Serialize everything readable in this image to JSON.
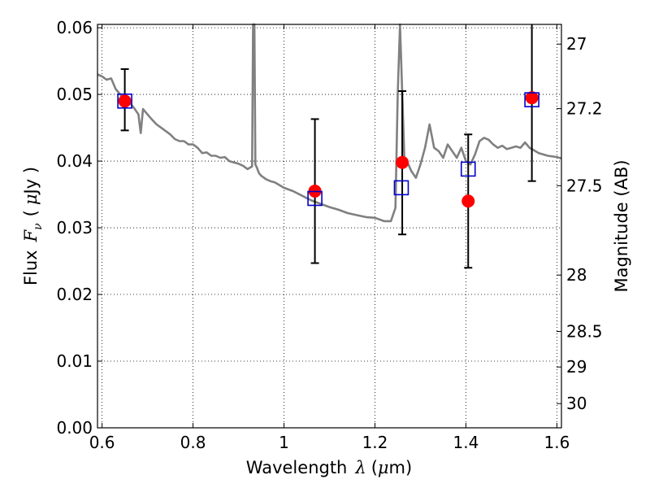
{
  "chart_data": {
    "type": "scatter",
    "xlabel": {
      "prefix": "Wavelength",
      "symbol": "λ",
      "unit_open": "(",
      "unit_mu": "μ",
      "unit_rest": "m)"
    },
    "ylabel": {
      "prefix": "Flux",
      "symbol": "F",
      "subscript": "ν",
      "unit_open": "(",
      "unit_mu": "μ",
      "unit_rest": "Jy )"
    },
    "y2label": "Magnitude (AB)",
    "xlim": [
      0.59,
      1.61
    ],
    "ylim": [
      0.0,
      0.0605
    ],
    "grid": true,
    "xticks": [
      {
        "value": 0.6,
        "label": "0.6"
      },
      {
        "value": 0.8,
        "label": "0.8"
      },
      {
        "value": 1.0,
        "label": "1"
      },
      {
        "value": 1.2,
        "label": "1.2"
      },
      {
        "value": 1.4,
        "label": "1.4"
      },
      {
        "value": 1.6,
        "label": "1.6"
      }
    ],
    "yticks": [
      {
        "value": 0.0,
        "label": "0.00"
      },
      {
        "value": 0.01,
        "label": "0.01"
      },
      {
        "value": 0.02,
        "label": "0.02"
      },
      {
        "value": 0.03,
        "label": "0.03"
      },
      {
        "value": 0.04,
        "label": "0.04"
      },
      {
        "value": 0.05,
        "label": "0.05"
      },
      {
        "value": 0.06,
        "label": "0.06"
      }
    ],
    "y2ticks": [
      {
        "mag": 27.0,
        "label": "27"
      },
      {
        "mag": 27.2,
        "label": "27.2"
      },
      {
        "mag": 27.5,
        "label": "27.5"
      },
      {
        "mag": 28.0,
        "label": "28"
      },
      {
        "mag": 28.5,
        "label": "28.5"
      },
      {
        "mag": 29.0,
        "label": "29"
      },
      {
        "mag": 30.0,
        "label": "30"
      }
    ],
    "model_spectrum": {
      "color": "#808080",
      "x": [
        0.59,
        0.6,
        0.61,
        0.62,
        0.63,
        0.64,
        0.65,
        0.66,
        0.67,
        0.68,
        0.685,
        0.69,
        0.7,
        0.71,
        0.72,
        0.73,
        0.74,
        0.75,
        0.76,
        0.77,
        0.78,
        0.79,
        0.8,
        0.81,
        0.82,
        0.83,
        0.84,
        0.85,
        0.86,
        0.87,
        0.88,
        0.89,
        0.9,
        0.91,
        0.92,
        0.93,
        0.932,
        0.935,
        0.937,
        0.94,
        0.945,
        0.95,
        0.96,
        0.97,
        0.98,
        1.0,
        1.02,
        1.04,
        1.06,
        1.08,
        1.1,
        1.12,
        1.14,
        1.16,
        1.18,
        1.2,
        1.22,
        1.235,
        1.245,
        1.25,
        1.255,
        1.26,
        1.265,
        1.27,
        1.28,
        1.29,
        1.3,
        1.31,
        1.32,
        1.33,
        1.34,
        1.35,
        1.36,
        1.37,
        1.38,
        1.39,
        1.4,
        1.41,
        1.42,
        1.43,
        1.44,
        1.45,
        1.46,
        1.47,
        1.48,
        1.49,
        1.5,
        1.51,
        1.52,
        1.53,
        1.54,
        1.55,
        1.56,
        1.57,
        1.58,
        1.59,
        1.6,
        1.61
      ],
      "y": [
        0.053,
        0.0527,
        0.0522,
        0.0524,
        0.0508,
        0.05,
        0.049,
        0.0488,
        0.048,
        0.047,
        0.0442,
        0.0478,
        0.047,
        0.0462,
        0.0455,
        0.045,
        0.0445,
        0.044,
        0.0433,
        0.043,
        0.043,
        0.0425,
        0.0425,
        0.042,
        0.0412,
        0.0413,
        0.0408,
        0.0408,
        0.0405,
        0.0406,
        0.04,
        0.0398,
        0.0396,
        0.0393,
        0.0388,
        0.0392,
        0.061,
        0.061,
        0.0395,
        0.0391,
        0.0382,
        0.0378,
        0.0373,
        0.037,
        0.0368,
        0.036,
        0.0355,
        0.0348,
        0.0341,
        0.0336,
        0.0331,
        0.0327,
        0.0322,
        0.0319,
        0.0316,
        0.0315,
        0.031,
        0.031,
        0.033,
        0.05,
        0.061,
        0.05,
        0.0395,
        0.04,
        0.0385,
        0.0375,
        0.0395,
        0.042,
        0.0455,
        0.042,
        0.0415,
        0.0405,
        0.0425,
        0.0415,
        0.0405,
        0.042,
        0.04,
        0.0395,
        0.041,
        0.043,
        0.0435,
        0.0432,
        0.0425,
        0.042,
        0.0423,
        0.0418,
        0.042,
        0.0422,
        0.042,
        0.0428,
        0.042,
        0.0416,
        0.0412,
        0.041,
        0.0408,
        0.0407,
        0.0406,
        0.0404
      ]
    },
    "observed": {
      "color": "#ff0000",
      "points": [
        {
          "x": 0.65,
          "y": 0.049,
          "yerr_low": 0.0446,
          "yerr_high": 0.0538
        },
        {
          "x": 1.068,
          "y": 0.0355,
          "yerr_low": 0.0247,
          "yerr_high": 0.0463
        },
        {
          "x": 1.26,
          "y": 0.0398,
          "yerr_low": 0.029,
          "yerr_high": 0.0505
        },
        {
          "x": 1.405,
          "y": 0.034,
          "yerr_low": 0.024,
          "yerr_high": 0.044
        },
        {
          "x": 1.545,
          "y": 0.0495,
          "yerr_low": 0.037,
          "yerr_high": 0.0605
        }
      ]
    },
    "model_photometry": {
      "color": "#0000cc",
      "points": [
        {
          "x": 0.65,
          "y": 0.049
        },
        {
          "x": 1.068,
          "y": 0.0344
        },
        {
          "x": 1.258,
          "y": 0.036
        },
        {
          "x": 1.405,
          "y": 0.0388
        },
        {
          "x": 1.545,
          "y": 0.0492
        }
      ]
    }
  }
}
